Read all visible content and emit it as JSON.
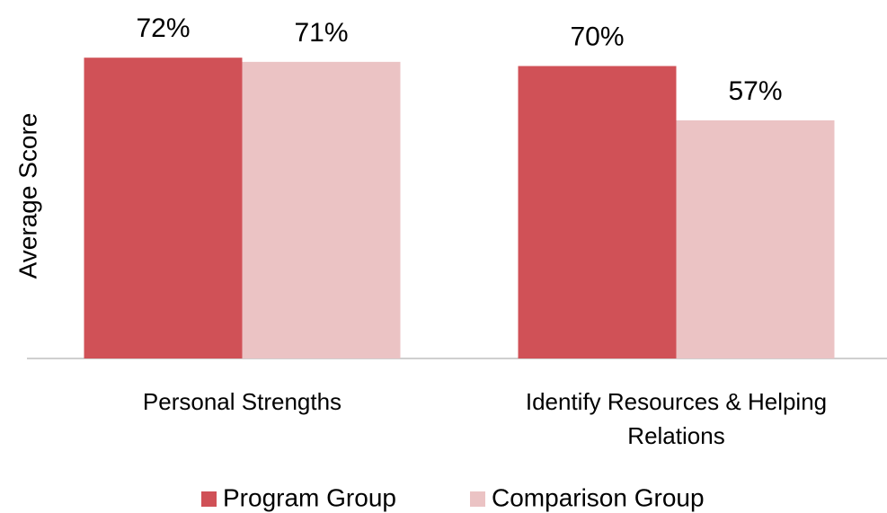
{
  "chart_data": {
    "type": "bar",
    "ylabel": "Average Score",
    "categories": [
      "Personal Strengths",
      "Identify Resources & Helping Relations"
    ],
    "series": [
      {
        "name": "Program Group",
        "color": "#d05157",
        "values": [
          72,
          70
        ],
        "value_labels": [
          "72%",
          "70%"
        ]
      },
      {
        "name": "Comparison Group",
        "color": "#ebc3c4",
        "values": [
          71,
          57
        ],
        "value_labels": [
          "71%",
          "57%"
        ]
      }
    ],
    "ylim": [
      0,
      80
    ],
    "legend": "bottom"
  }
}
